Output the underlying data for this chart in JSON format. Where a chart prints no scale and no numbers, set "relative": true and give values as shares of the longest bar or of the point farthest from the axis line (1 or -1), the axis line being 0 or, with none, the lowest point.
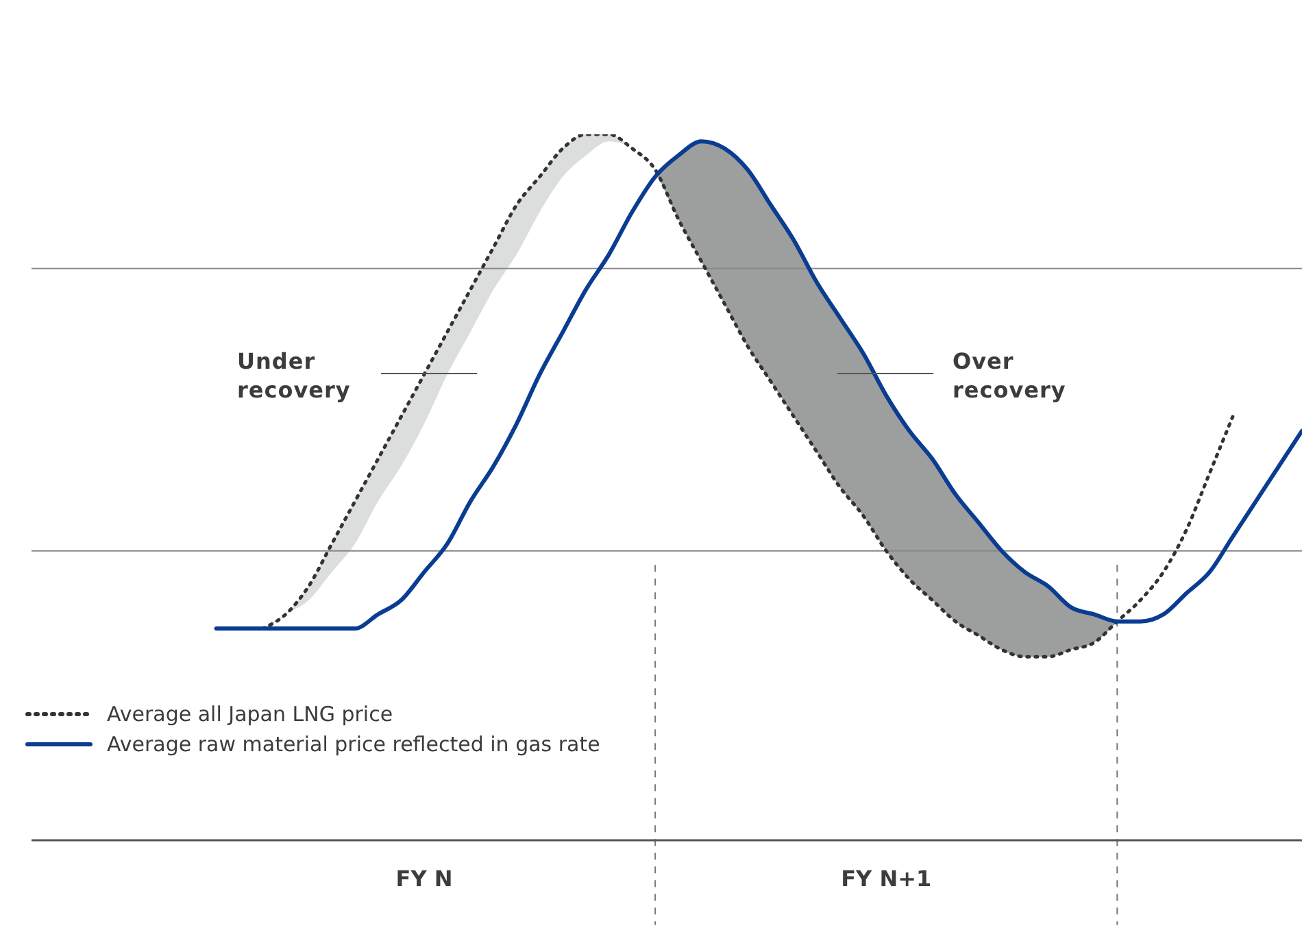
{
  "chart_data": {
    "type": "line",
    "relative": true,
    "marker": "none",
    "legend": "bottom left",
    "categories": [
      null,
      null,
      null,
      null,
      null,
      null,
      null,
      null,
      null,
      null,
      null,
      null,
      null,
      null,
      null,
      null,
      null,
      "FY N",
      null,
      null,
      null,
      null,
      null,
      null,
      null,
      null,
      null,
      null,
      null,
      null,
      null,
      null,
      null,
      null,
      null,
      null,
      null,
      "FY N+1",
      null,
      null,
      null,
      null,
      null,
      null,
      null,
      null,
      null,
      null,
      null,
      null,
      null,
      null,
      null,
      null,
      null,
      null
    ],
    "series": [
      {
        "name": "Average all Japan LNG price",
        "color": "#333333",
        "line_style": "dotted",
        "values": [
          null,
          null,
          null,
          null,
          null,
          null,
          null,
          null,
          null,
          null,
          0.3,
          0.32,
          0.36,
          0.42,
          0.48,
          0.54,
          0.6,
          0.66,
          0.72,
          0.78,
          0.84,
          0.9,
          0.94,
          0.98,
          1.0,
          1.0,
          0.98,
          0.95,
          0.88,
          0.82,
          0.76,
          0.7,
          0.65,
          0.6,
          0.55,
          0.5,
          0.46,
          0.41,
          0.37,
          0.34,
          0.31,
          0.29,
          0.27,
          0.26,
          0.26,
          0.27,
          0.28,
          0.31,
          0.34,
          0.38,
          0.44,
          0.52,
          0.6,
          null,
          null,
          null
        ],
        "lower": [
          null,
          null,
          null,
          null,
          null,
          null,
          null,
          null,
          null,
          null,
          0.3,
          0.32,
          0.34,
          0.38,
          0.42,
          0.48,
          0.53,
          0.59,
          0.66,
          0.72,
          0.78,
          0.83,
          0.89,
          0.94,
          0.97,
          0.99,
          0.98,
          0.95,
          null,
          null,
          null,
          null,
          null,
          null,
          null,
          null,
          null,
          null,
          null,
          null,
          null,
          null,
          null,
          null,
          null,
          null,
          null,
          null,
          null,
          null,
          null,
          null,
          null,
          null,
          null,
          null
        ],
        "upper": [
          null,
          null,
          null,
          null,
          null,
          null,
          null,
          null,
          null,
          null,
          0.3,
          0.32,
          0.36,
          0.42,
          0.48,
          0.54,
          0.6,
          0.66,
          0.72,
          0.78,
          0.84,
          0.9,
          0.94,
          0.98,
          1.0,
          1.0,
          0.98,
          0.95,
          null,
          null,
          null,
          null,
          null,
          null,
          null,
          null,
          null,
          null,
          null,
          null,
          null,
          null,
          null,
          null,
          null,
          null,
          null,
          null,
          null,
          null,
          null,
          null,
          null,
          null,
          null,
          null
        ]
      },
      {
        "name": "Average raw material price reflected in gas rate",
        "color": "#0a3d91",
        "line_style": "solid",
        "values": [
          null,
          null,
          null,
          null,
          null,
          null,
          null,
          null,
          0.3,
          0.3,
          0.3,
          0.3,
          0.3,
          0.3,
          0.3,
          0.32,
          0.34,
          0.38,
          0.42,
          0.48,
          0.53,
          0.59,
          0.66,
          0.72,
          0.78,
          0.83,
          0.89,
          0.94,
          0.97,
          0.99,
          0.98,
          0.95,
          0.9,
          0.85,
          0.79,
          0.74,
          0.69,
          0.63,
          0.58,
          0.54,
          0.49,
          0.45,
          0.41,
          0.38,
          0.36,
          0.33,
          0.32,
          0.31,
          0.31,
          0.32,
          0.35,
          0.38,
          0.43,
          0.48,
          0.53,
          0.58
        ],
        "lower": [
          null,
          null,
          null,
          null,
          null,
          null,
          null,
          null,
          null,
          null,
          null,
          null,
          null,
          null,
          null,
          null,
          null,
          null,
          null,
          null,
          null,
          null,
          null,
          null,
          null,
          null,
          null,
          0.95,
          0.88,
          0.82,
          0.76,
          0.7,
          0.65,
          0.6,
          0.55,
          0.5,
          0.46,
          0.41,
          0.37,
          0.34,
          0.31,
          0.29,
          0.27,
          0.26,
          0.26,
          0.27,
          0.28,
          0.31,
          null,
          null,
          null,
          null,
          null,
          null,
          null,
          null
        ],
        "upper": [
          null,
          null,
          null,
          null,
          null,
          null,
          null,
          null,
          null,
          null,
          null,
          null,
          null,
          null,
          null,
          null,
          null,
          null,
          null,
          null,
          null,
          null,
          null,
          null,
          null,
          null,
          null,
          0.94,
          0.97,
          0.99,
          0.98,
          0.95,
          0.9,
          0.85,
          0.79,
          0.74,
          0.69,
          0.63,
          0.58,
          0.54,
          0.49,
          0.45,
          0.41,
          0.38,
          0.36,
          0.33,
          0.32,
          0.31,
          null,
          null,
          null,
          null,
          null,
          null,
          null,
          null
        ]
      }
    ],
    "ref_lines": [
      {
        "axis": "y",
        "value": 0.81,
        "color": "#888888",
        "line_style": "solid"
      },
      {
        "axis": "y",
        "value": 0.41,
        "color": "#888888",
        "line_style": "solid"
      }
    ],
    "annotations": [
      "Under recovery",
      "Over recovery"
    ]
  }
}
